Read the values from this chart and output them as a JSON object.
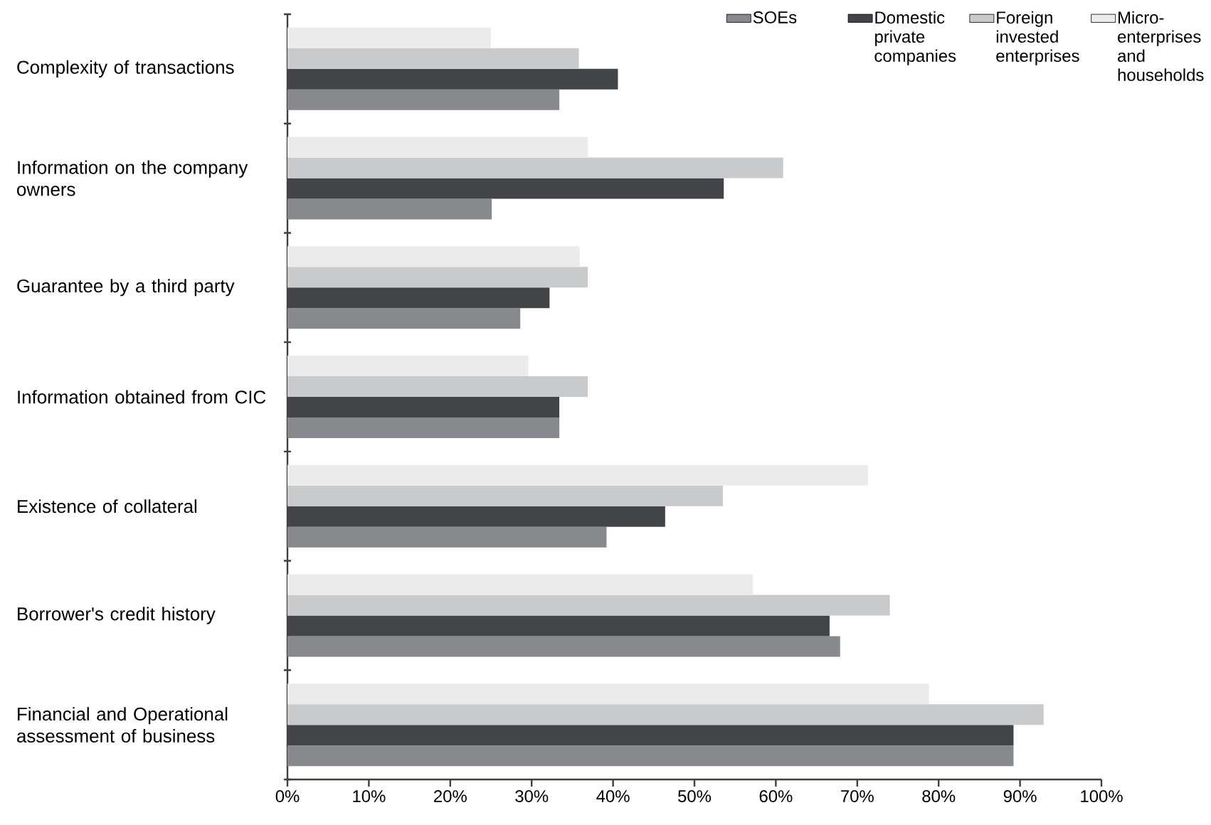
{
  "chart_data": {
    "type": "bar",
    "orientation": "horizontal",
    "categories": [
      "Complexity of transactions",
      "Information on the company owners",
      "Guarantee by a third party",
      "Information obtained from CIC",
      "Existence of collateral",
      "Borrower's credit history",
      "Financial and Operational assessment of business"
    ],
    "series": [
      {
        "name": "SOEs",
        "color": "#88898c",
        "values": [
          33.4,
          25.1,
          28.6,
          33.4,
          39.2,
          67.9,
          89.2
        ]
      },
      {
        "name": "Domestic private companies",
        "color": "#434447",
        "values": [
          40.6,
          53.6,
          32.2,
          33.4,
          46.4,
          66.6,
          89.2
        ]
      },
      {
        "name": "Foreign invested enterprises",
        "color": "#c9cacc",
        "values": [
          35.8,
          60.9,
          36.9,
          36.9,
          53.5,
          74.0,
          92.9
        ]
      },
      {
        "name": "Micro-enterprises and households",
        "color": "#ebebeb",
        "values": [
          25.0,
          36.9,
          35.9,
          29.6,
          71.3,
          57.2,
          78.8
        ]
      }
    ],
    "xlim": [
      0,
      100
    ],
    "xticks": [
      {
        "value": 0,
        "label": "0%"
      },
      {
        "value": 10,
        "label": "10%"
      },
      {
        "value": 20,
        "label": "20%"
      },
      {
        "value": 30,
        "label": "30%"
      },
      {
        "value": 40,
        "label": "40%"
      },
      {
        "value": 50,
        "label": "50%"
      },
      {
        "value": 60,
        "label": "60%"
      },
      {
        "value": 70,
        "label": "70%"
      },
      {
        "value": 80,
        "label": "80%"
      },
      {
        "value": 90,
        "label": "90%"
      },
      {
        "value": 100,
        "label": "100%"
      }
    ],
    "grid": false,
    "legend": "top right"
  }
}
